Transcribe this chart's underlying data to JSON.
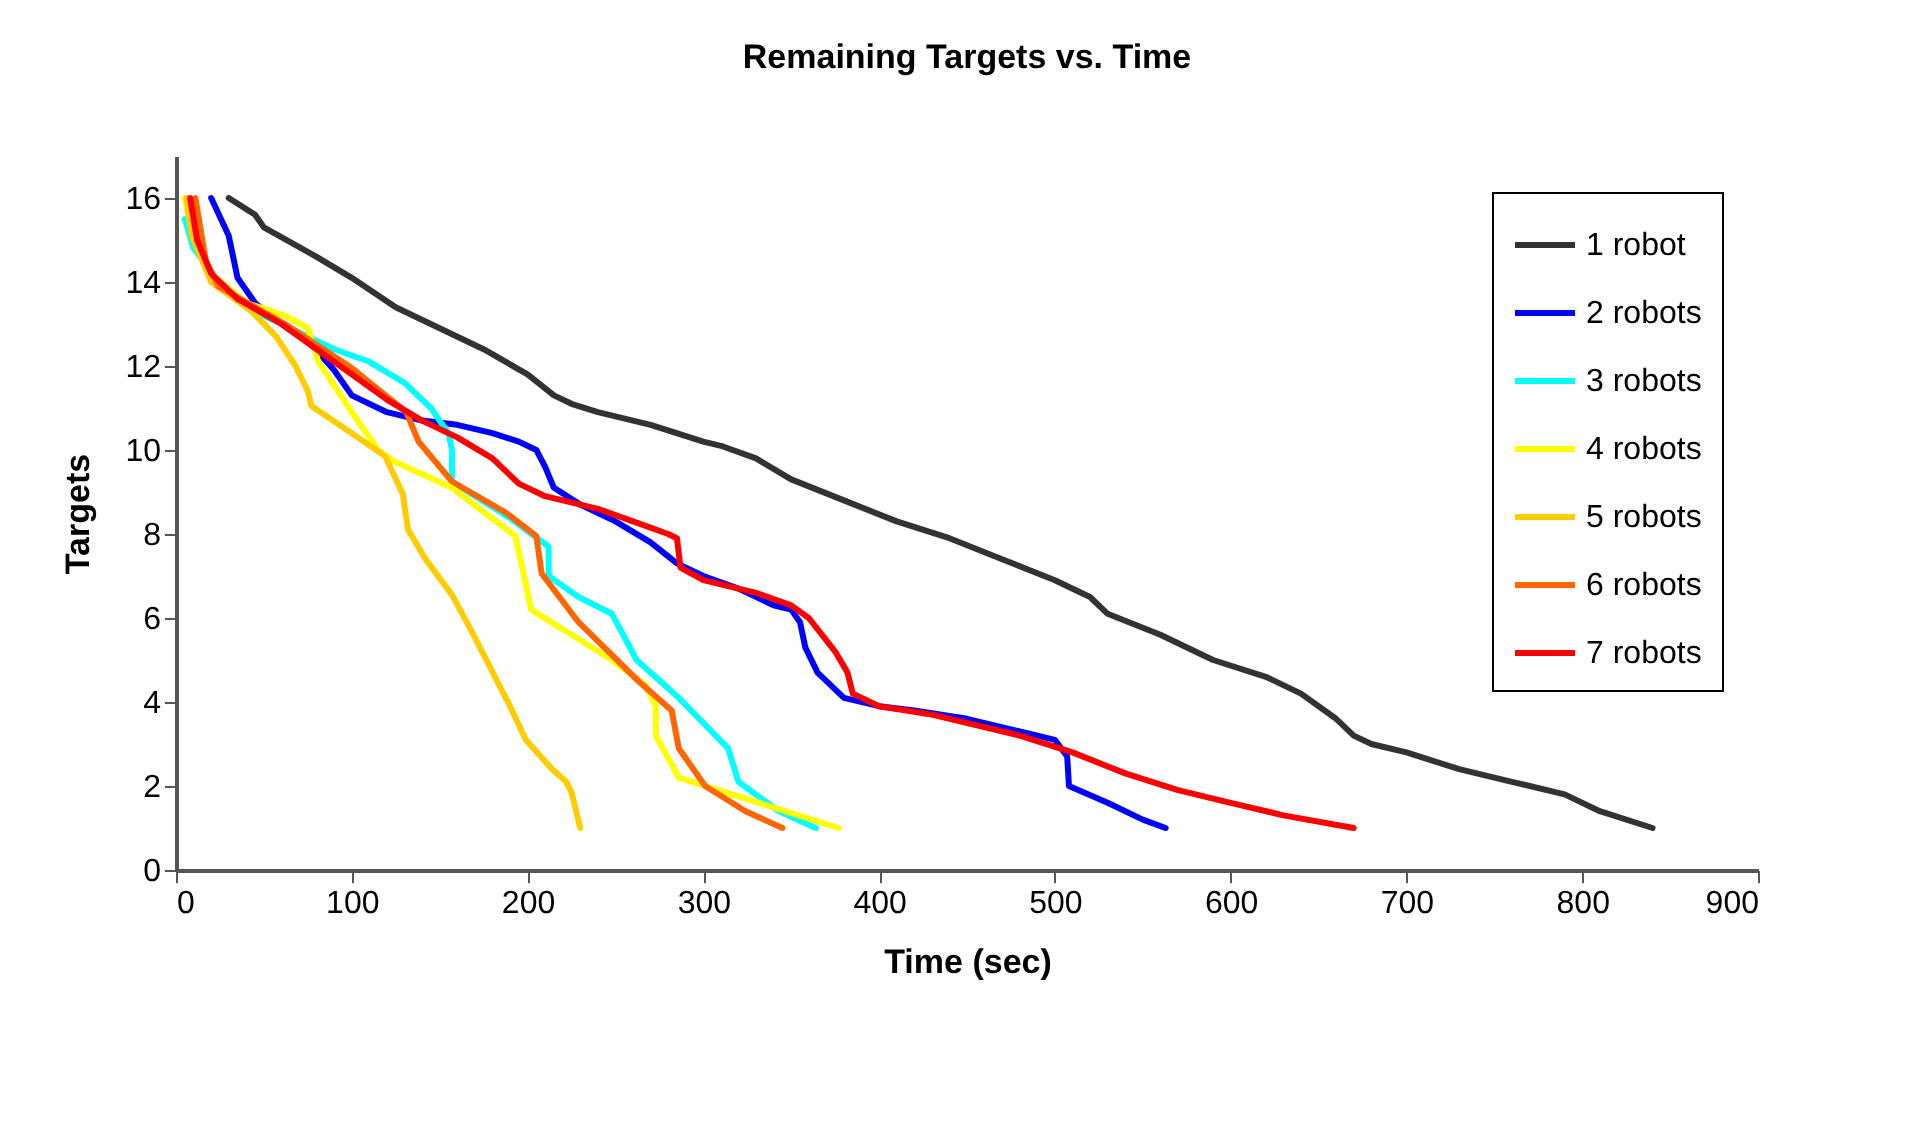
{
  "chart_data": {
    "type": "line",
    "title": "Remaining Targets vs. Time",
    "xlabel": "Time (sec)",
    "ylabel": "Targets",
    "xlim": [
      0,
      900
    ],
    "xticks": [
      0,
      100,
      200,
      300,
      400,
      500,
      600,
      700,
      800,
      900
    ],
    "ylim": [
      0,
      17
    ],
    "yticks": [
      0,
      2,
      4,
      6,
      8,
      10,
      12,
      14,
      16
    ],
    "grid": false,
    "legend": "top right",
    "marker": "none",
    "line_style": "solid",
    "series": [
      {
        "name": "1 robot",
        "color": "#333333",
        "x": [
          30,
          45,
          50,
          80,
          100,
          125,
          150,
          175,
          200,
          215,
          225,
          240,
          270,
          300,
          310,
          330,
          350,
          380,
          410,
          440,
          470,
          500,
          520,
          530,
          560,
          590,
          620,
          640,
          660,
          670,
          680,
          700,
          730,
          760,
          790,
          810,
          840
        ],
        "values": [
          16,
          15.6,
          15.3,
          14.6,
          14.1,
          13.4,
          12.9,
          12.4,
          11.8,
          11.3,
          11.1,
          10.9,
          10.6,
          10.2,
          10.1,
          9.8,
          9.3,
          8.8,
          8.3,
          7.9,
          7.4,
          6.9,
          6.5,
          6.1,
          5.6,
          5.0,
          4.6,
          4.2,
          3.6,
          3.2,
          3.0,
          2.8,
          2.4,
          2.1,
          1.8,
          1.4,
          1.0
        ]
      },
      {
        "name": "2 robots",
        "color": "#0000ff",
        "x": [
          20,
          30,
          35,
          45,
          60,
          75,
          90,
          100,
          120,
          140,
          160,
          180,
          195,
          205,
          210,
          215,
          230,
          250,
          270,
          285,
          300,
          320,
          340,
          350,
          355,
          358,
          365,
          380,
          400,
          420,
          450,
          480,
          500,
          507,
          508,
          530,
          550,
          563
        ],
        "values": [
          16,
          15.1,
          14.1,
          13.5,
          13.0,
          12.6,
          11.9,
          11.3,
          10.9,
          10.7,
          10.6,
          10.4,
          10.2,
          10.0,
          9.6,
          9.1,
          8.7,
          8.3,
          7.8,
          7.3,
          7.0,
          6.7,
          6.3,
          6.2,
          5.9,
          5.3,
          4.7,
          4.1,
          3.9,
          3.8,
          3.6,
          3.3,
          3.1,
          2.7,
          2.0,
          1.6,
          1.2,
          1.0
        ]
      },
      {
        "name": "3 robots",
        "color": "#00ffff",
        "x": [
          5,
          10,
          25,
          45,
          70,
          90,
          110,
          130,
          145,
          155,
          157,
          157,
          191,
          212,
          212,
          229,
          248,
          262,
          286,
          314,
          320,
          343,
          364
        ],
        "values": [
          15.5,
          14.8,
          14.0,
          13.3,
          12.8,
          12.4,
          12.1,
          11.6,
          11.0,
          10.4,
          10.0,
          9.25,
          8.35,
          7.7,
          7.0,
          6.5,
          6.1,
          5.0,
          4.1,
          2.9,
          2.1,
          1.4,
          1.0
        ]
      },
      {
        "name": "4 robots",
        "color": "#ffff00",
        "x": [
          5,
          10,
          20,
          40,
          62,
          75,
          81,
          100,
          115,
          123,
          157,
          193,
          197,
          202,
          225,
          248,
          267,
          273,
          273,
          286,
          324,
          377
        ],
        "values": [
          16,
          15,
          14.2,
          13.5,
          13.2,
          12.9,
          12.1,
          10.9,
          10.0,
          9.75,
          9.1,
          7.95,
          7.2,
          6.2,
          5.6,
          5.0,
          4.4,
          3.9,
          3.2,
          2.2,
          1.7,
          1.0
        ]
      },
      {
        "name": "5 robots",
        "color": "#ffcc00",
        "x": [
          6,
          9,
          20,
          43,
          57,
          68,
          75,
          77,
          100,
          119,
          129,
          132,
          142,
          157,
          168,
          190,
          199,
          214,
          222,
          225,
          230
        ],
        "values": [
          16,
          15.1,
          14.0,
          13.3,
          12.7,
          12.0,
          11.4,
          11.05,
          10.4,
          9.85,
          8.95,
          8.1,
          7.4,
          6.55,
          5.7,
          3.9,
          3.1,
          2.4,
          2.1,
          1.85,
          1.0
        ]
      },
      {
        "name": "6 robots",
        "color": "#ff6600",
        "x": [
          11,
          17,
          24,
          62,
          100,
          131,
          138,
          157,
          188,
          205,
          208,
          229,
          263,
          282,
          286,
          301,
          324,
          345
        ],
        "values": [
          16,
          14.5,
          13.9,
          13.0,
          11.95,
          10.9,
          10.2,
          9.25,
          8.5,
          7.95,
          7.06,
          5.9,
          4.5,
          3.8,
          2.9,
          2.0,
          1.4,
          1.0
        ]
      },
      {
        "name": "7 robots",
        "color": "#ff0000",
        "x": [
          8,
          12,
          20,
          35,
          60,
          80,
          100,
          120,
          140,
          160,
          180,
          195,
          210,
          240,
          260,
          280,
          285,
          287,
          300,
          330,
          350,
          360,
          375,
          382,
          385,
          400,
          430,
          480,
          510,
          540,
          570,
          600,
          630,
          670
        ],
        "values": [
          16,
          15,
          14.2,
          13.6,
          13.0,
          12.4,
          11.8,
          11.2,
          10.7,
          10.3,
          9.8,
          9.2,
          8.9,
          8.6,
          8.3,
          8.0,
          7.9,
          7.2,
          6.9,
          6.6,
          6.3,
          6.0,
          5.2,
          4.7,
          4.2,
          3.9,
          3.7,
          3.2,
          2.8,
          2.3,
          1.9,
          1.6,
          1.3,
          1.0
        ]
      }
    ]
  }
}
